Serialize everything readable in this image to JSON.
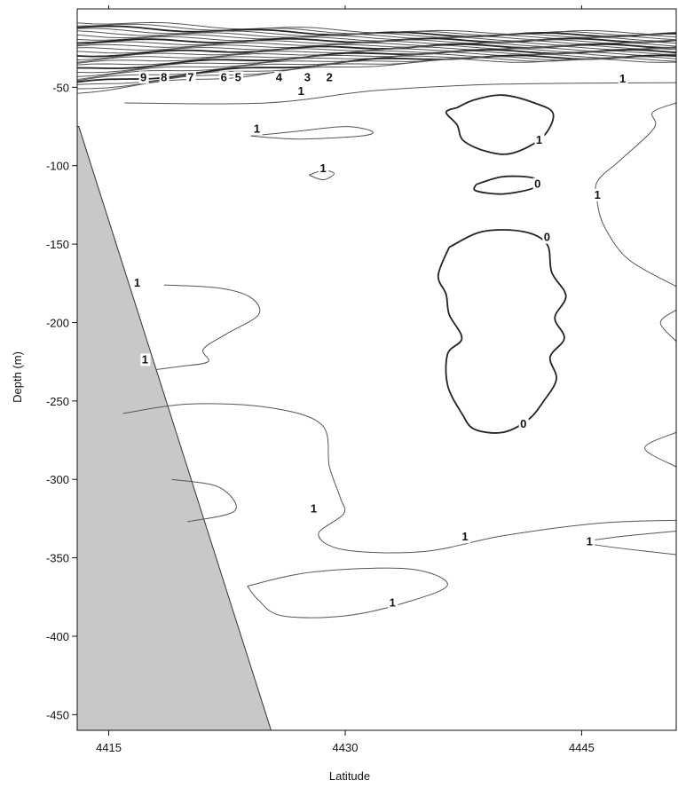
{
  "chart_data": {
    "type": "contour",
    "xlabel": "Latitude",
    "ylabel": "Depth (m)",
    "xlim": [
      4413,
      4451
    ],
    "ylim": [
      -460,
      0
    ],
    "xticks": [
      4415,
      4430,
      4445
    ],
    "yticks": [
      -50,
      -100,
      -150,
      -200,
      -250,
      -300,
      -350,
      -400,
      -450
    ],
    "grid": false,
    "bathymetry": {
      "fill": "#c8c8c8",
      "boundary": [
        [
          4413.1,
          -75
        ],
        [
          4425.3,
          -460
        ]
      ]
    },
    "surface_labels": [
      "9",
      "8",
      "7",
      "6",
      "5",
      "4",
      "3",
      "2"
    ],
    "contours": [
      {
        "level": "0",
        "path": [
          [
            4437.1,
            -63
          ],
          [
            4438.2,
            -58
          ],
          [
            4440.0,
            -55
          ],
          [
            4442.0,
            -60
          ],
          [
            4443.2,
            -67
          ],
          [
            4442.5,
            -82
          ],
          [
            4440.6,
            -92
          ],
          [
            4439.0,
            -91
          ],
          [
            4437.5,
            -84
          ],
          [
            4437.1,
            -74
          ],
          [
            4436.4,
            -66
          ],
          [
            4437.1,
            -63
          ]
        ]
      },
      {
        "level": "0",
        "path": [
          [
            4438.3,
            -112
          ],
          [
            4440.0,
            -107
          ],
          [
            4442.0,
            -108
          ],
          [
            4442.0,
            -114
          ],
          [
            4440.0,
            -118
          ],
          [
            4438.3,
            -116
          ],
          [
            4438.3,
            -112
          ]
        ]
      },
      {
        "level": "0",
        "path": [
          [
            4436.6,
            -152
          ],
          [
            4438.7,
            -142
          ],
          [
            4441.3,
            -142
          ],
          [
            4442.8,
            -150
          ],
          [
            4443.1,
            -168
          ],
          [
            4444.0,
            -183
          ],
          [
            4443.3,
            -197
          ],
          [
            4443.9,
            -210
          ],
          [
            4443.0,
            -222
          ],
          [
            4443.4,
            -236
          ],
          [
            4442.6,
            -250
          ],
          [
            4441.6,
            -262
          ],
          [
            4440.0,
            -270
          ],
          [
            4438.2,
            -268
          ],
          [
            4437.4,
            -258
          ],
          [
            4436.5,
            -240
          ],
          [
            4436.5,
            -220
          ],
          [
            4437.4,
            -210
          ],
          [
            4436.6,
            -195
          ],
          [
            4436.4,
            -182
          ],
          [
            4435.9,
            -170
          ],
          [
            4436.6,
            -152
          ]
        ]
      },
      {
        "level": "1",
        "path": [
          [
            4418.5,
            -176
          ],
          [
            4422.0,
            -178
          ],
          [
            4424.0,
            -184
          ],
          [
            4424.5,
            -195
          ],
          [
            4422.5,
            -207
          ],
          [
            4421.0,
            -217
          ],
          [
            4421.3,
            -225
          ],
          [
            4419.5,
            -228
          ],
          [
            4418.0,
            -230
          ]
        ]
      },
      {
        "level": "1",
        "path": [
          [
            4415.9,
            -258
          ],
          [
            4420.0,
            -252
          ],
          [
            4425.0,
            -254
          ],
          [
            4428.5,
            -265
          ],
          [
            4429.0,
            -292
          ],
          [
            4429.7,
            -312
          ],
          [
            4429.9,
            -322
          ],
          [
            4428.3,
            -335
          ],
          [
            4430.0,
            -345
          ],
          [
            4435.0,
            -346
          ],
          [
            4440.0,
            -336
          ],
          [
            4446.0,
            -328
          ],
          [
            4451.0,
            -326
          ]
        ]
      },
      {
        "level": "1",
        "path": [
          [
            4419.0,
            -300
          ],
          [
            4422.0,
            -305
          ],
          [
            4423.0,
            -320
          ],
          [
            4420.0,
            -327
          ]
        ]
      },
      {
        "level": "1",
        "path": [
          [
            4423.8,
            -368
          ],
          [
            4428.0,
            -359
          ],
          [
            4434.0,
            -357
          ],
          [
            4436.5,
            -367
          ],
          [
            4434.0,
            -378
          ],
          [
            4430.0,
            -387
          ],
          [
            4426.0,
            -387
          ],
          [
            4424.5,
            -377
          ],
          [
            4423.8,
            -368
          ]
        ]
      },
      {
        "level": "1",
        "path": [
          [
            4451.0,
            -333
          ],
          [
            4447.0,
            -337
          ],
          [
            4445.5,
            -341
          ],
          [
            4451.0,
            -348
          ]
        ]
      },
      {
        "level": "1",
        "path": [
          [
            4451.0,
            -270
          ],
          [
            4449.0,
            -280
          ],
          [
            4451.0,
            -292
          ]
        ]
      },
      {
        "level": "1",
        "path": [
          [
            4451.0,
            -212
          ],
          [
            4450.0,
            -200
          ],
          [
            4451.0,
            -192
          ]
        ]
      },
      {
        "level": "1",
        "path": [
          [
            4451.0,
            -60
          ],
          [
            4449.5,
            -66
          ],
          [
            4449.6,
            -76
          ],
          [
            4447.5,
            -96
          ],
          [
            4446.0,
            -110
          ],
          [
            4446.0,
            -124
          ],
          [
            4446.5,
            -140
          ],
          [
            4448.0,
            -160
          ],
          [
            4451.0,
            -177
          ]
        ]
      },
      {
        "level": "1",
        "path": [
          [
            4424.0,
            -81
          ],
          [
            4427.0,
            -78
          ],
          [
            4430.0,
            -75
          ],
          [
            4431.7,
            -78
          ],
          [
            4431.0,
            -81
          ],
          [
            4427.0,
            -83
          ],
          [
            4424.0,
            -81
          ]
        ]
      },
      {
        "level": "1",
        "path": [
          [
            4427.7,
            -106
          ],
          [
            4428.6,
            -103
          ],
          [
            4429.3,
            -105
          ],
          [
            4428.6,
            -109
          ],
          [
            4427.7,
            -106
          ]
        ]
      },
      {
        "level": "1",
        "path": [
          [
            4416.0,
            -60
          ],
          [
            4425.0,
            -60
          ],
          [
            4432.0,
            -52
          ],
          [
            4440.0,
            -48
          ],
          [
            4451.0,
            -47
          ]
        ]
      }
    ],
    "contour_labels": [
      {
        "text": "1",
        "x": 4442.3,
        "y": -86
      },
      {
        "text": "0",
        "x": 4442.2,
        "y": -114
      },
      {
        "text": "0",
        "x": 4442.8,
        "y": -148
      },
      {
        "text": "0",
        "x": 4441.3,
        "y": -267
      },
      {
        "text": "1",
        "x": 4416.8,
        "y": -177
      },
      {
        "text": "1",
        "x": 4417.3,
        "y": -226
      },
      {
        "text": "1",
        "x": 4428.0,
        "y": -321
      },
      {
        "text": "1",
        "x": 4437.6,
        "y": -339
      },
      {
        "text": "1",
        "x": 4433.0,
        "y": -381
      },
      {
        "text": "1",
        "x": 4445.5,
        "y": -342
      },
      {
        "text": "1",
        "x": 4446.0,
        "y": -121
      },
      {
        "text": "1",
        "x": 4424.4,
        "y": -79
      },
      {
        "text": "1",
        "x": 4428.6,
        "y": -104
      },
      {
        "text": "1",
        "x": 4427.2,
        "y": -55
      },
      {
        "text": "1",
        "x": 4447.6,
        "y": -47
      }
    ]
  }
}
